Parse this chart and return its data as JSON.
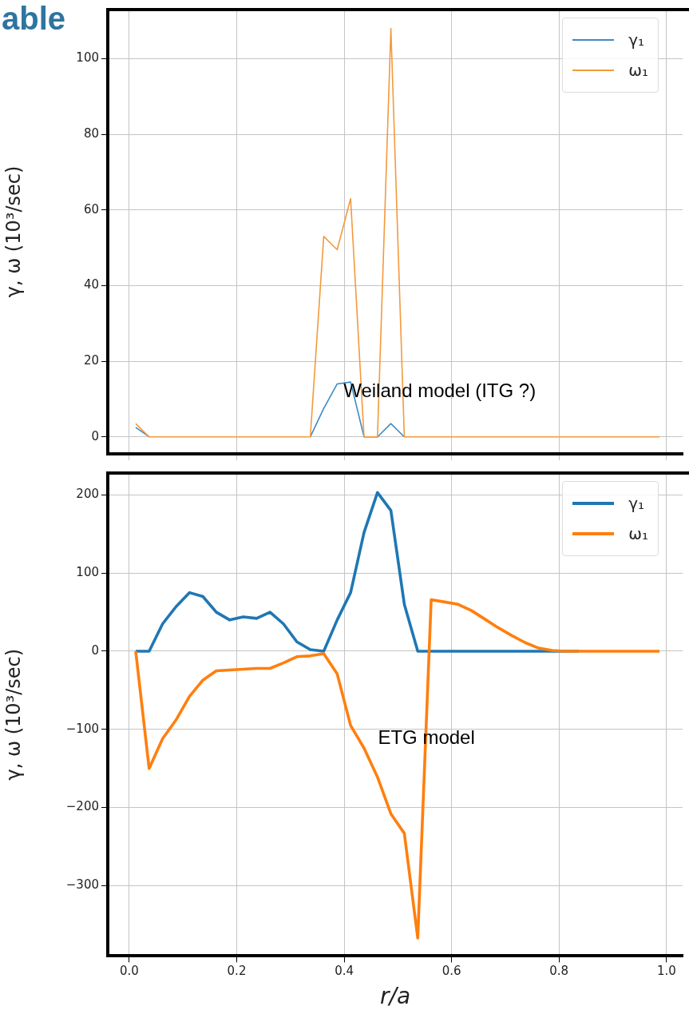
{
  "chart_data": [
    {
      "type": "line",
      "title": "able",
      "ylabel": "γ, ω (10³/sec)",
      "annotations": [
        "Weiland model (ITG ?)"
      ],
      "x": [
        0.012,
        0.037,
        0.062,
        0.087,
        0.112,
        0.137,
        0.162,
        0.187,
        0.212,
        0.237,
        0.262,
        0.287,
        0.312,
        0.337,
        0.362,
        0.387,
        0.412,
        0.437,
        0.462,
        0.487,
        0.512,
        0.537,
        0.562,
        0.587,
        0.612,
        0.637,
        0.662,
        0.687,
        0.712,
        0.737,
        0.762,
        0.787,
        0.812,
        0.837,
        0.862,
        0.887,
        0.912,
        0.937,
        0.962,
        0.987
      ],
      "series": [
        {
          "name": "γ₁",
          "color": "#3d8bc4",
          "values": [
            2.5,
            0,
            null,
            null,
            null,
            null,
            null,
            null,
            null,
            null,
            null,
            null,
            null,
            0,
            7.5,
            14,
            14.5,
            0,
            0,
            3.5,
            0,
            null,
            null,
            null,
            null,
            null,
            null,
            null,
            null,
            null,
            null,
            null,
            null,
            null,
            null,
            null,
            null,
            null,
            null,
            null
          ]
        },
        {
          "name": "ω₁",
          "color": "#f39a3c",
          "values": [
            3.5,
            0,
            0,
            0,
            0,
            0,
            0,
            0,
            0,
            0,
            0,
            0,
            0,
            0,
            53,
            49.5,
            63,
            0,
            0,
            108,
            0,
            0,
            0,
            0,
            0,
            0,
            0,
            0,
            0,
            0,
            0,
            0,
            0,
            0,
            0,
            0,
            0,
            0,
            0,
            0
          ]
        }
      ],
      "xlim": [
        -0.04,
        1.03
      ],
      "xticks": [
        {
          "value": 0,
          "label": null
        },
        {
          "value": 0.2,
          "label": null
        },
        {
          "value": 0.4,
          "label": null
        },
        {
          "value": 0.6,
          "label": null
        },
        {
          "value": 0.8,
          "label": null
        },
        {
          "value": 1,
          "label": null
        }
      ],
      "ylim": [
        -4.5,
        113
      ],
      "yticks": [
        0,
        20,
        40,
        60,
        80,
        100
      ],
      "tick_labels": "y",
      "grid": true,
      "legend": "top right",
      "marker": "none",
      "line_style": "solid"
    },
    {
      "type": "line",
      "xlabel": "r/a",
      "ylabel": "γ, ω (10³/sec)",
      "annotations": [
        "ETG model"
      ],
      "x": [
        0.012,
        0.037,
        0.062,
        0.087,
        0.112,
        0.137,
        0.162,
        0.187,
        0.212,
        0.237,
        0.262,
        0.287,
        0.312,
        0.337,
        0.362,
        0.387,
        0.412,
        0.437,
        0.462,
        0.487,
        0.512,
        0.537,
        0.562,
        0.587,
        0.612,
        0.637,
        0.662,
        0.687,
        0.712,
        0.737,
        0.762,
        0.787,
        0.812,
        0.837,
        0.862,
        0.887,
        0.912,
        0.937,
        0.962,
        0.987
      ],
      "series": [
        {
          "name": "γ₁",
          "color": "#1f77b4",
          "values": [
            0,
            0,
            35,
            57,
            75,
            70,
            50,
            40,
            44,
            42,
            50,
            35,
            12,
            2,
            0,
            40,
            75,
            152,
            203,
            180,
            60,
            0,
            0,
            0,
            0,
            0,
            0,
            0,
            0,
            0,
            0,
            0,
            0,
            0,
            null,
            null,
            null,
            null,
            null,
            null
          ]
        },
        {
          "name": "ω₁",
          "color": "#ff7f0e",
          "values": [
            0,
            -150,
            -112,
            -88,
            -58,
            -37,
            -25,
            -24,
            -23,
            -22,
            -22,
            -15,
            -7,
            -6,
            -3,
            -29,
            -95,
            -124,
            -161,
            -208,
            -233,
            -367,
            66,
            63,
            60,
            52,
            41,
            30,
            20,
            11,
            4,
            1,
            0,
            0,
            0,
            0,
            0,
            0,
            0,
            0
          ]
        }
      ],
      "xlim": [
        -0.04,
        1.03
      ],
      "xticks": [
        {
          "value": 0,
          "label": "0.0"
        },
        0.2,
        0.4,
        0.6,
        0.8,
        {
          "value": 1,
          "label": "1.0"
        }
      ],
      "ylim": [
        -390,
        228
      ],
      "yticks": [
        -300,
        -200,
        -100,
        0,
        100,
        200
      ],
      "grid": true,
      "legend": "top right",
      "marker": "none",
      "line_style": "solid"
    }
  ]
}
